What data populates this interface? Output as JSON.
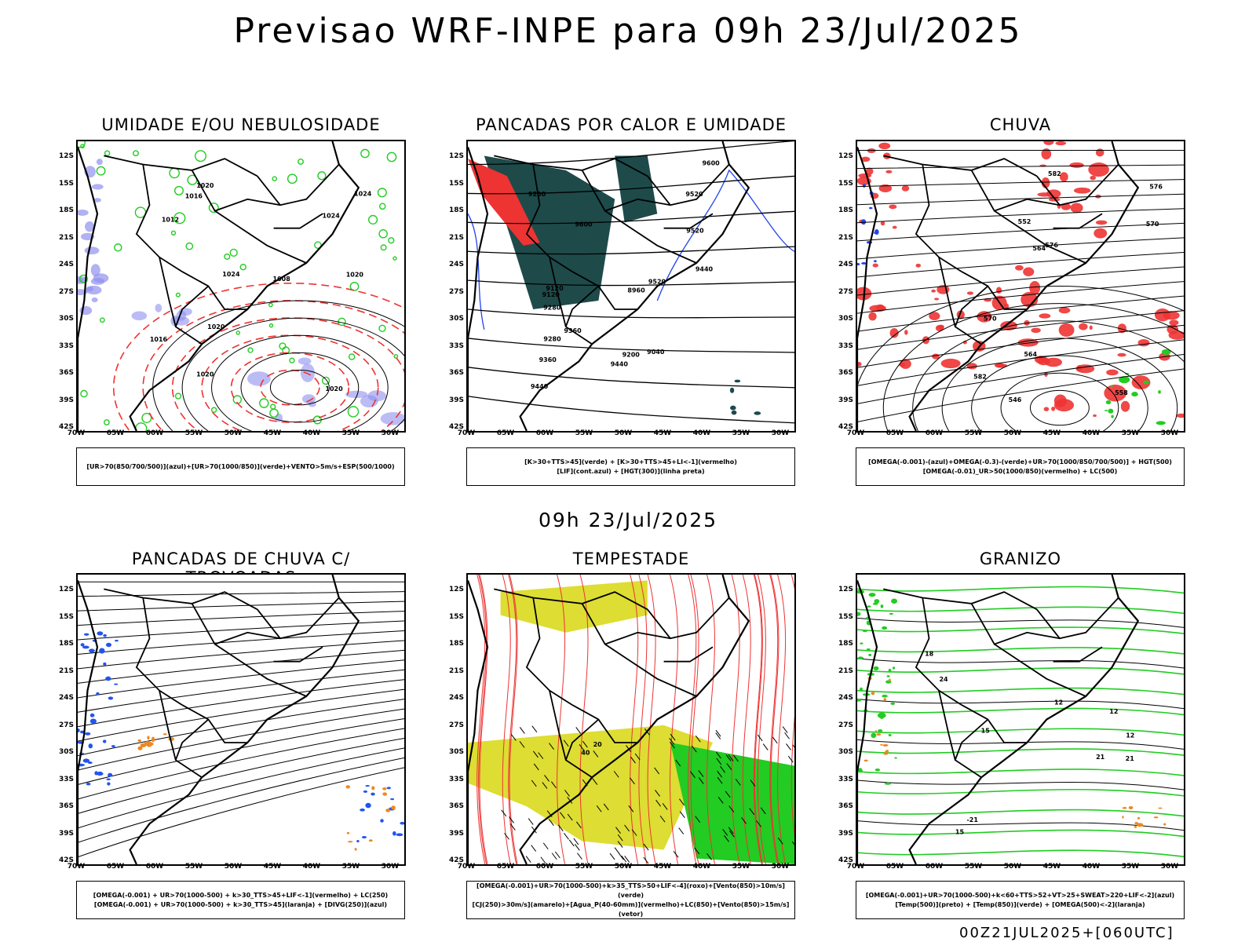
{
  "header": {
    "title": "Previsao WRF-INPE  para 09h 23/Jul/2025",
    "subtitle": "09h 23/Jul/2025",
    "run_label": "00Z21JUL2025+[060UTC]"
  },
  "axes": {
    "lat_labels": [
      "12S",
      "15S",
      "18S",
      "21S",
      "24S",
      "27S",
      "30S",
      "33S",
      "36S",
      "39S",
      "42S"
    ],
    "lon_labels": [
      "70W",
      "65W",
      "60W",
      "55W",
      "50W",
      "45W",
      "40W",
      "35W",
      "30W"
    ]
  },
  "panels": [
    {
      "id": "umidade",
      "title": "UMIDADE E/OU NEBULOSIDADE",
      "legend": [
        "[UR>70(850/700/500)](azul)+[UR>70(1000/850)](verde)+VENTO>5m/s+ESP(500/1000)"
      ],
      "contour_labels": [
        "1016",
        "1020",
        "1024",
        "1020",
        "1016",
        "1012",
        "1008",
        "1020",
        "1020",
        "1024",
        "1024",
        "1020"
      ],
      "colors": {
        "blue": "#9090ee",
        "green": "#22cc22",
        "red": "#ee3333"
      }
    },
    {
      "id": "pancadas_calor",
      "title": "PANCADAS POR CALOR E UMIDADE",
      "legend": [
        "[K>30+TTS>45](verde) + [K>30+TTS>45+LI<-1](vermelho)",
        "[LIF](cont.azul) + [HGT(300)](linha preta)"
      ],
      "contour_labels": [
        "9600",
        "9600",
        "9520",
        "9520",
        "9520",
        "9440",
        "9440",
        "9440",
        "9360",
        "9360",
        "9280",
        "9280",
        "9200",
        "9200",
        "9120",
        "9120",
        "9040",
        "8960"
      ],
      "colors": {
        "teal": "#1e4a4a",
        "red": "#ee3333",
        "blue": "#2244ee"
      }
    },
    {
      "id": "chuva",
      "title": "CHUVA",
      "legend": [
        "[OMEGA(-0.001)-(azul)+OMEGA(-0.3)-(verde)+UR>70(1000/850/700/500)] + HGT(500)",
        "[OMEGA(-0.01)_UR>50(1000/850)(vermelho) + LC(500)"
      ],
      "contour_labels": [
        "582",
        "582",
        "576",
        "576",
        "570",
        "570",
        "564",
        "564",
        "558",
        "552",
        "546"
      ],
      "colors": {
        "red": "#ee3333",
        "green": "#22cc22",
        "blue": "#2244ee"
      }
    },
    {
      "id": "pancadas_trovoadas",
      "title": "PANCADAS DE CHUVA C/ TROVOADAS",
      "legend": [
        "[OMEGA(-0.001) + UR>70(1000-500) + k>30_TTS>45+LIF<-1](vermelho) + LC(250)",
        "[OMEGA(-0.001) + UR>70(1000-500) + k>30_TTS>45](laranja) + [DIVG(250)](azul)"
      ],
      "contour_labels": [],
      "colors": {
        "blue": "#2255ee",
        "orange": "#ee8822",
        "red": "#ee3333"
      }
    },
    {
      "id": "tempestade",
      "title": "TEMPESTADE",
      "legend": [
        "[OMEGA(-0.001)+UR>70(1000-500)+k>35_TTS>50+LIF<-4](roxo)+[Vento(850)>10m/s](verde)",
        "[CJ(250)>30m/s](amarelo)+[Agua_P(40-60mm)](vermelho)+LC(850)+[Vento(850)>15m/s](vetor)"
      ],
      "contour_labels": [
        "20",
        "40"
      ],
      "colors": {
        "yellow": "#dddd33",
        "green": "#22cc22",
        "red": "#ee3333"
      }
    },
    {
      "id": "granizo",
      "title": "GRANIZO",
      "legend": [
        "[OMEGA(-0.001)+UR>70(1000-500)+k<60+TTS>52+VT>25+SWEAT>220+LIF<-2](azul)",
        "[Temp(500)](preto) + [Temp(850)](verde) + [OMEGA(500)<-2](laranja)"
      ],
      "contour_labels": [
        "12",
        "12",
        "12",
        "15",
        "15",
        "18",
        "21",
        "21",
        "24",
        "-21"
      ],
      "colors": {
        "green": "#22cc22",
        "orange": "#ee8822",
        "black": "#000000"
      }
    }
  ]
}
